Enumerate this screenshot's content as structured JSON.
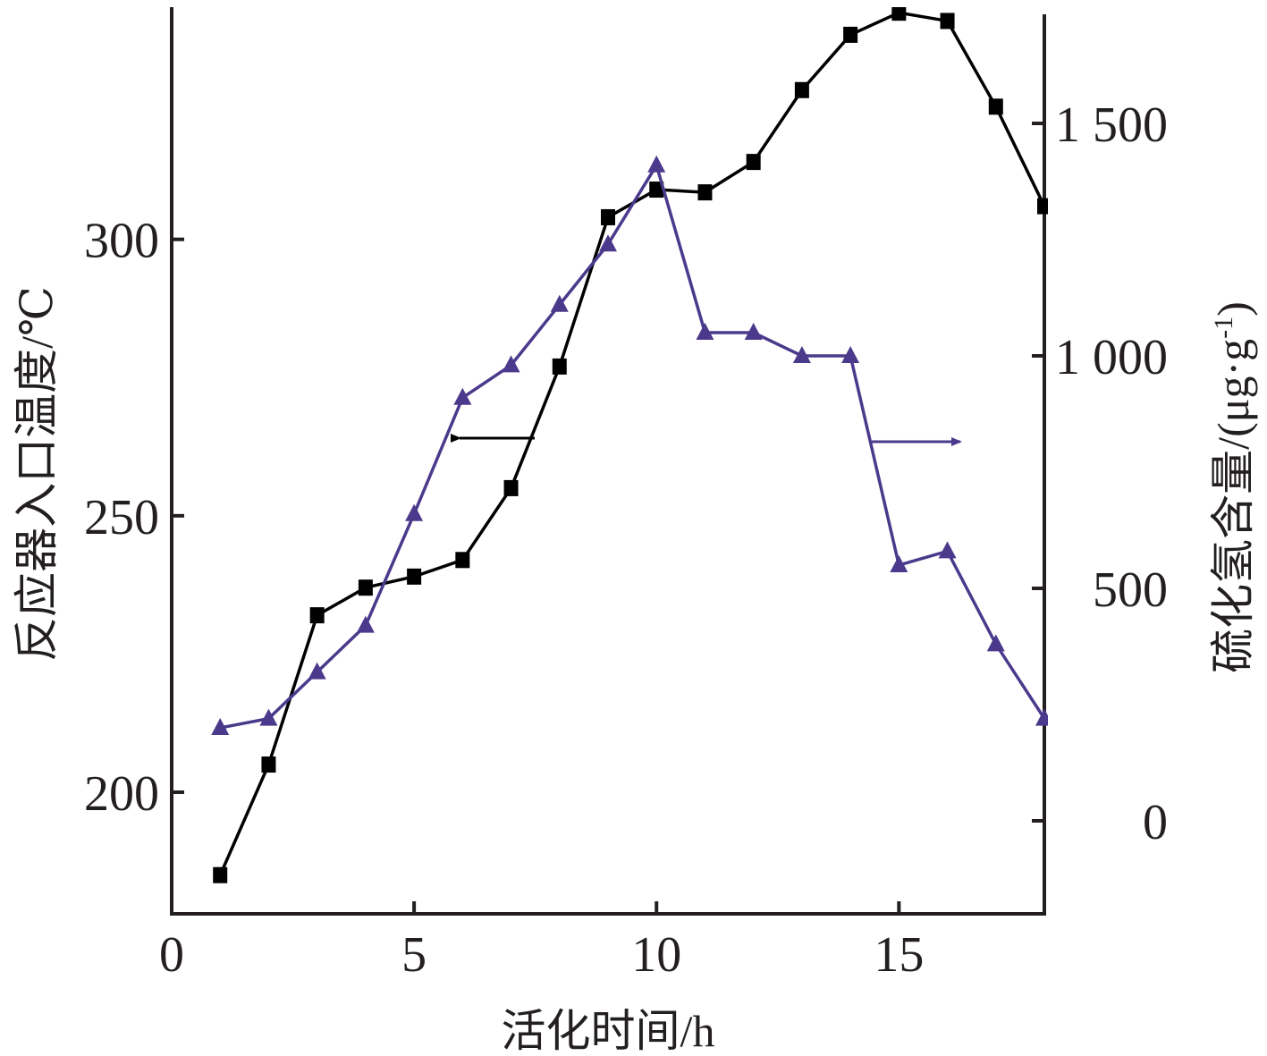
{
  "chart_data": {
    "type": "line",
    "xlabel": "活化时间/h",
    "ylabel_left": "反应器入口温度/℃",
    "ylabel_right_main": "硫化氢含量/(μg·g",
    "ylabel_right_sup": "-1",
    "ylabel_right_close": ")",
    "xlim": [
      0,
      18
    ],
    "ylim_left": [
      178,
      342
    ],
    "ylim_right": [
      -200,
      1750
    ],
    "x_ticks": [
      0,
      5,
      10,
      15
    ],
    "x_tick_labels": [
      "0",
      "5",
      "10",
      "15"
    ],
    "y_left_ticks": [
      200,
      250,
      300
    ],
    "y_left_tick_labels": [
      "200",
      "250",
      "300"
    ],
    "y_right_ticks": [
      0,
      500,
      1000,
      1500
    ],
    "y_right_tick_labels": [
      "0",
      "500",
      "1 000",
      "1 500"
    ],
    "grid": false,
    "series": [
      {
        "axis": "left",
        "marker": "square",
        "color": "#000000",
        "x": [
          1,
          2,
          3,
          4,
          5,
          6,
          7,
          8,
          9,
          10,
          11,
          12,
          13,
          14,
          15,
          16,
          17,
          18
        ],
        "values": [
          185,
          205,
          232,
          237,
          239,
          242,
          255,
          277,
          304,
          309,
          308.5,
          314,
          327,
          337,
          341,
          339.5,
          324,
          306
        ]
      },
      {
        "axis": "right",
        "marker": "triangle",
        "color": "#4b3a8c",
        "x": [
          1,
          2,
          3,
          4,
          5,
          6,
          7,
          8,
          9,
          10,
          11,
          12,
          13,
          14,
          15,
          16,
          17,
          18
        ],
        "values": [
          200,
          220,
          320,
          420,
          660,
          910,
          980,
          1110,
          1240,
          1410,
          1050,
          1050,
          1000,
          1000,
          550,
          580,
          380,
          220
        ]
      }
    ],
    "annotations": [
      {
        "type": "arrow",
        "points_to": "left",
        "near_series": 0
      },
      {
        "type": "arrow",
        "points_to": "right",
        "near_series": 1
      }
    ]
  }
}
